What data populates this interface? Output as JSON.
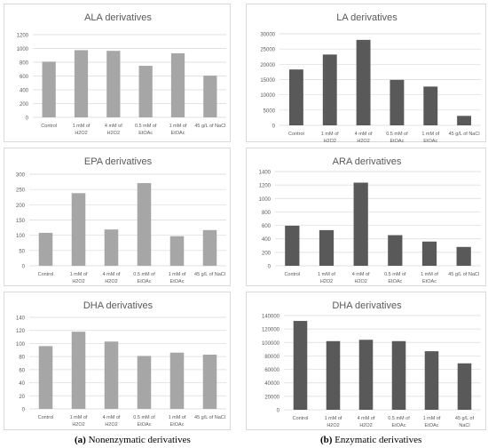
{
  "x_categories": [
    [
      "Control"
    ],
    [
      "1 mM of",
      "H2O2"
    ],
    [
      "4 mM of",
      "H2O2"
    ],
    [
      "0.5 mM of",
      "EtOAc"
    ],
    [
      "1 mM of",
      "EtOAc"
    ],
    [
      "45 g/L of NaCl"
    ]
  ],
  "x_categories_variant_b": [
    [
      "Control"
    ],
    [
      "1 mM of",
      "H2O2"
    ],
    [
      "4 mM of",
      "H2O2"
    ],
    [
      "0.5 mM of",
      "EtOAc"
    ],
    [
      "1 mM of",
      "EtOAc"
    ],
    [
      "45 g/L of",
      "NaCl"
    ]
  ],
  "colors": {
    "nonenzymatic": "#a6a6a6",
    "enzymatic": "#595959",
    "gridline": "#d9d9d9",
    "text": "#595959"
  },
  "captions": {
    "a_label": "(a)",
    "a_text": " Nonenzymatic derivatives",
    "b_label": "(b)",
    "b_text": " Enzymatic derivatives"
  },
  "chart_data": [
    {
      "type": "bar",
      "title": "ALA derivatives",
      "group": "nonenzymatic",
      "categories": [
        "Control",
        "1 mM of H2O2",
        "4 mM of H2O2",
        "0.5 mM of EtOAc",
        "1 mM of EtOAc",
        "45 g/L of NaCl"
      ],
      "values": [
        808,
        975,
        965,
        748,
        930,
        605
      ],
      "ylim": [
        0,
        1200
      ],
      "yticks": [
        0,
        200,
        400,
        600,
        800,
        1000,
        1200
      ],
      "grid": true
    },
    {
      "type": "bar",
      "title": "LA derivatives",
      "group": "enzymatic",
      "categories": [
        "Control",
        "1 mM of H2O2",
        "4 mM of H2O2",
        "0.5 mM of EtOAc",
        "1 mM of EtOAc",
        "45 g/L of NaCl"
      ],
      "values": [
        18300,
        23200,
        28000,
        14900,
        12700,
        3100
      ],
      "ylim": [
        0,
        30000
      ],
      "yticks": [
        0,
        5000,
        10000,
        15000,
        20000,
        25000,
        30000
      ],
      "grid": true
    },
    {
      "type": "bar",
      "title": "EPA derivatives",
      "group": "nonenzymatic",
      "categories": [
        "Control",
        "1 mM of H2O2",
        "4 mM of H2O2",
        "0.5 mM of EtOAc",
        "1 mM of EtOAc",
        "45 g/L of NaCl"
      ],
      "values": [
        108,
        238,
        119,
        271,
        97,
        117
      ],
      "ylim": [
        0,
        300
      ],
      "yticks": [
        0,
        50,
        100,
        150,
        200,
        250,
        300
      ],
      "grid": true
    },
    {
      "type": "bar",
      "title": "ARA derivatives",
      "group": "enzymatic",
      "categories": [
        "Control",
        "1 mM of H2O2",
        "4 mM of H2O2",
        "0.5 mM of EtOAc",
        "1 mM of EtOAc",
        "45 g/L of NaCl"
      ],
      "values": [
        595,
        530,
        1235,
        455,
        360,
        280
      ],
      "ylim": [
        0,
        1400
      ],
      "yticks": [
        0,
        200,
        400,
        600,
        800,
        1000,
        1200,
        1400
      ],
      "grid": true
    },
    {
      "type": "bar",
      "title": "DHA derivatives",
      "group": "nonenzymatic",
      "categories": [
        "Control",
        "1 mM of H2O2",
        "4 mM of H2O2",
        "0.5 mM of EtOAc",
        "1 mM of EtOAc",
        "45 g/L of NaCl"
      ],
      "values": [
        96,
        118,
        103,
        81,
        86,
        83
      ],
      "ylim": [
        0,
        140
      ],
      "yticks": [
        0,
        20,
        40,
        60,
        80,
        100,
        120,
        140
      ],
      "grid": true
    },
    {
      "type": "bar",
      "title": "DHA derivatives",
      "group": "enzymatic",
      "categories": [
        "Control",
        "1 mM of H2O2",
        "4 mM of H2O2",
        "0.5 mM of EtOAc",
        "1 mM of EtOAc",
        "45 g/L of NaCl"
      ],
      "values": [
        132000,
        102000,
        104000,
        102000,
        87000,
        69000
      ],
      "ylim": [
        0,
        140000
      ],
      "yticks": [
        0,
        20000,
        40000,
        60000,
        80000,
        100000,
        120000,
        140000
      ],
      "grid": true
    }
  ]
}
